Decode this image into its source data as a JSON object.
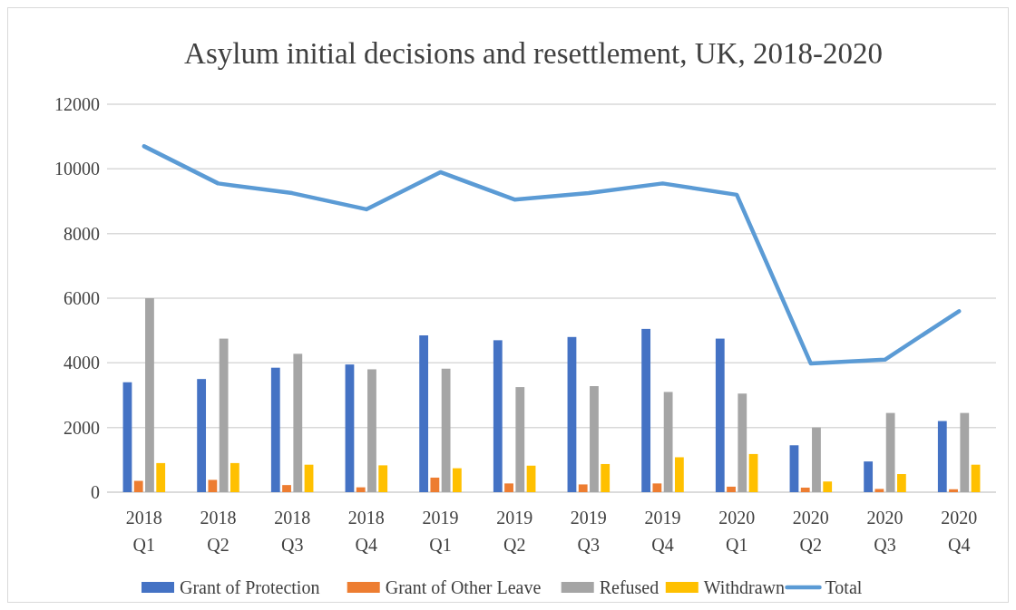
{
  "chart_data": {
    "type": "bar",
    "title": "Asylum initial decisions and resettlement, UK, 2018-2020",
    "categories": [
      "2018\nQ1",
      "2018\nQ2",
      "2018\nQ3",
      "2018\nQ4",
      "2019\nQ1",
      "2019\nQ2",
      "2019\nQ3",
      "2019\nQ4",
      "2020\nQ1",
      "2020\nQ2",
      "2020\nQ3",
      "2020\nQ4"
    ],
    "series": [
      {
        "name": "Grant of Protection",
        "color": "#4472c4",
        "values": [
          3400,
          3500,
          3850,
          3950,
          4850,
          4700,
          4800,
          5050,
          4750,
          1450,
          950,
          2200
        ]
      },
      {
        "name": "Grant of Other Leave",
        "color": "#ed7d31",
        "values": [
          350,
          380,
          220,
          150,
          450,
          270,
          240,
          270,
          170,
          140,
          100,
          90
        ]
      },
      {
        "name": "Refused",
        "color": "#a5a5a5",
        "values": [
          6000,
          4750,
          4280,
          3800,
          3820,
          3250,
          3280,
          3100,
          3050,
          2000,
          2450,
          2450
        ]
      },
      {
        "name": "Withdrawn",
        "color": "#ffc000",
        "values": [
          900,
          900,
          850,
          830,
          740,
          820,
          870,
          1080,
          1180,
          330,
          560,
          850
        ]
      },
      {
        "name": "Total",
        "type": "line",
        "color": "#5b9bd5",
        "values": [
          10700,
          9550,
          9250,
          8750,
          9900,
          9050,
          9250,
          9550,
          9200,
          3980,
          4100,
          5600
        ]
      }
    ],
    "ylim": [
      0,
      12000
    ],
    "yticks": [
      0,
      2000,
      4000,
      6000,
      8000,
      10000,
      12000
    ],
    "grid": "y",
    "legend": "bottom",
    "marker": "none"
  }
}
